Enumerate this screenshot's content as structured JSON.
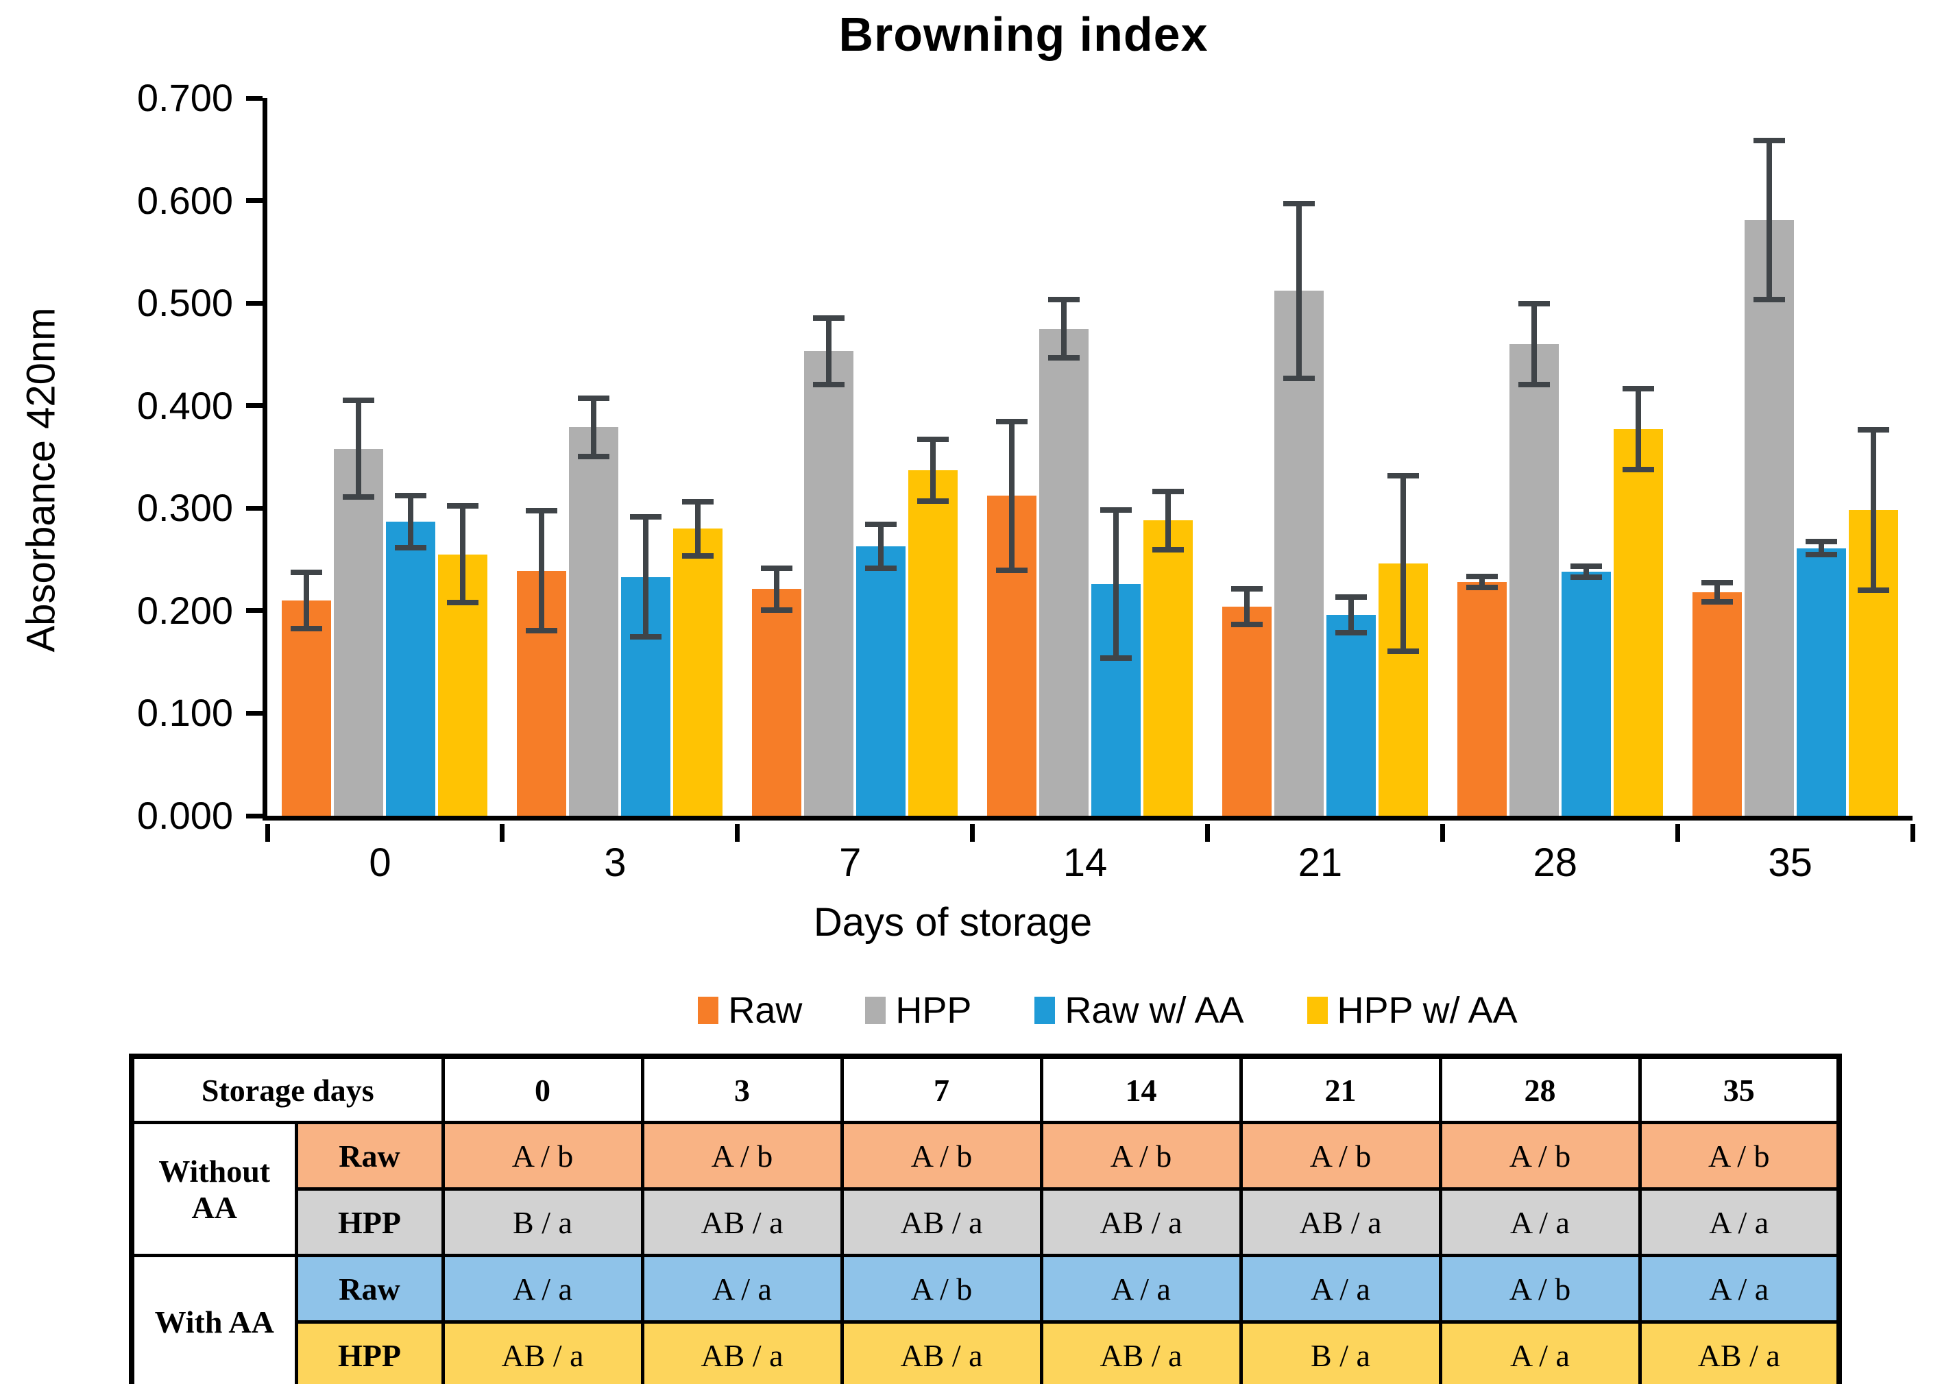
{
  "title": "Browning index",
  "chart_data": {
    "type": "bar",
    "title": "Browning index",
    "xlabel": "Days of storage",
    "ylabel": "Absorbance 420nm",
    "ylim": [
      0,
      0.7
    ],
    "ytick_step": 0.1,
    "ytick_labels": [
      "0.000",
      "0.100",
      "0.200",
      "0.300",
      "0.400",
      "0.500",
      "0.600",
      "0.700"
    ],
    "grid": false,
    "legend_position": "bottom",
    "error_bar_color": "#3f4448",
    "categories": [
      "0",
      "3",
      "7",
      "14",
      "21",
      "28",
      "35"
    ],
    "series": [
      {
        "name": "Raw",
        "color": "#F67D28",
        "patterned": false,
        "values": [
          0.21,
          0.239,
          0.221,
          0.312,
          0.204,
          0.228,
          0.218
        ],
        "errors": [
          0.03,
          0.061,
          0.023,
          0.075,
          0.02,
          0.008,
          0.012
        ]
      },
      {
        "name": "HPP",
        "color": "#AFAFAF",
        "patterned": true,
        "values": [
          0.358,
          0.379,
          0.453,
          0.475,
          0.512,
          0.46,
          0.581
        ],
        "errors": [
          0.05,
          0.031,
          0.035,
          0.031,
          0.088,
          0.042,
          0.08
        ]
      },
      {
        "name": "Raw w/ AA",
        "color": "#1F9BD7",
        "patterned": false,
        "values": [
          0.287,
          0.233,
          0.263,
          0.226,
          0.196,
          0.238,
          0.261
        ],
        "errors": [
          0.028,
          0.061,
          0.024,
          0.075,
          0.02,
          0.008,
          0.009
        ]
      },
      {
        "name": "HPP w/ AA",
        "color": "#FFC303",
        "patterned": false,
        "values": [
          0.255,
          0.28,
          0.337,
          0.288,
          0.246,
          0.377,
          0.298
        ],
        "errors": [
          0.05,
          0.029,
          0.033,
          0.031,
          0.088,
          0.042,
          0.081
        ]
      }
    ]
  },
  "table": {
    "header_label": "Storage days",
    "columns": [
      "0",
      "3",
      "7",
      "14",
      "21",
      "28",
      "35"
    ],
    "groups": [
      {
        "label": "Without AA",
        "rows": [
          {
            "label": "Raw",
            "bg": "#F9B384",
            "cells": [
              "A / b",
              "A / b",
              "A / b",
              "A / b",
              "A / b",
              "A / b",
              "A / b"
            ]
          },
          {
            "label": "HPP",
            "bg": "#D2D2D2",
            "cells": [
              "B / a",
              "AB / a",
              "AB / a",
              "AB / a",
              "AB / a",
              "A / a",
              "A / a"
            ]
          }
        ]
      },
      {
        "label": "With AA",
        "rows": [
          {
            "label": "Raw",
            "bg": "#8FC3E9",
            "cells": [
              "A / a",
              "A / a",
              "A / b",
              "A / a",
              "A / a",
              "A / b",
              "A / a"
            ]
          },
          {
            "label": "HPP",
            "bg": "#FDD55C",
            "cells": [
              "AB / a",
              "AB / a",
              "AB / a",
              "AB / a",
              "B / a",
              "A / a",
              "AB / a"
            ]
          }
        ]
      }
    ]
  }
}
